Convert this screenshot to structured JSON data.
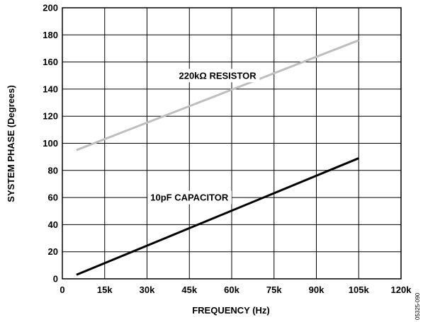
{
  "chart_data": {
    "type": "line",
    "title": "",
    "xlabel": "FREQUENCY (Hz)",
    "ylabel": "SYSTEM PHASE (Degrees)",
    "xlim": [
      0,
      120000
    ],
    "ylim": [
      0,
      200
    ],
    "x_ticks": [
      0,
      15000,
      30000,
      45000,
      60000,
      75000,
      90000,
      105000,
      120000
    ],
    "x_tick_labels": [
      "0",
      "15k",
      "30k",
      "45k",
      "60k",
      "75k",
      "90k",
      "105k",
      "120k"
    ],
    "y_ticks": [
      0,
      20,
      40,
      60,
      80,
      100,
      120,
      140,
      160,
      180,
      200
    ],
    "y_tick_labels": [
      "0",
      "20",
      "40",
      "60",
      "80",
      "100",
      "120",
      "140",
      "160",
      "180",
      "200"
    ],
    "grid": true,
    "legend": "none",
    "series": [
      {
        "name": "220kΩ RESISTOR",
        "color": "#bebebe",
        "x": [
          5000,
          105000
        ],
        "y": [
          95,
          176
        ],
        "label_at": [
          55000,
          150
        ]
      },
      {
        "name": "10pF CAPACITOR",
        "color": "#000000",
        "x": [
          5000,
          105000
        ],
        "y": [
          3,
          89
        ],
        "label_at": [
          45000,
          60
        ]
      }
    ],
    "figure_id": "05325-090"
  }
}
